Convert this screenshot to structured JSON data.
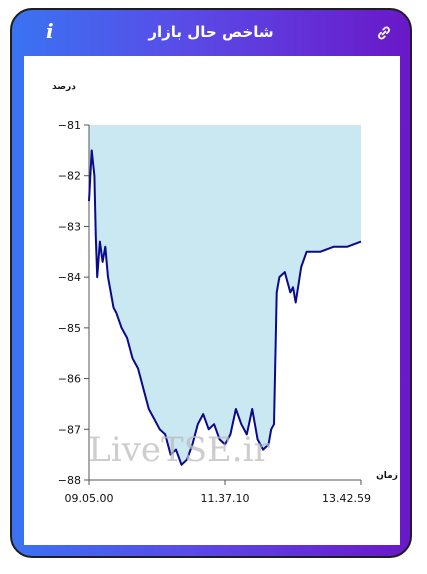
{
  "header": {
    "title": "شاخص حال بازار",
    "info_icon": "info-icon",
    "link_icon": "link-icon"
  },
  "colors": {
    "gradient_start": "#3a73f2",
    "gradient_end": "#6a18c8",
    "line": "#0a0a8c",
    "fill": "#c9e8f2"
  },
  "watermark": "LiveTSE.ir",
  "chart_data": {
    "type": "area",
    "ylabel": "درصد",
    "xlabel": "زمان",
    "ylim": [
      -88,
      -81
    ],
    "yticks": [
      -81,
      -82,
      -83,
      -84,
      -85,
      -86,
      -87,
      -88
    ],
    "ytick_labels": [
      "−81",
      "−82",
      "−83",
      "−84",
      "−85",
      "−86",
      "−87",
      "−88"
    ],
    "xtick_labels": [
      "09.05.00",
      "11.37.10",
      "13.42.59"
    ],
    "baseline": -81,
    "grid": false,
    "x_fraction": [
      0,
      0.01,
      0.02,
      0.025,
      0.03,
      0.04,
      0.05,
      0.06,
      0.07,
      0.08,
      0.09,
      0.1,
      0.12,
      0.14,
      0.16,
      0.18,
      0.2,
      0.22,
      0.24,
      0.26,
      0.28,
      0.3,
      0.32,
      0.34,
      0.36,
      0.38,
      0.4,
      0.42,
      0.44,
      0.46,
      0.48,
      0.5,
      0.52,
      0.54,
      0.56,
      0.58,
      0.6,
      0.62,
      0.64,
      0.66,
      0.67,
      0.68,
      0.69,
      0.7,
      0.72,
      0.74,
      0.75,
      0.76,
      0.78,
      0.8,
      0.85,
      0.9,
      0.95,
      1.0
    ],
    "values": [
      -82.5,
      -81.5,
      -82.0,
      -83.2,
      -84.0,
      -83.3,
      -83.7,
      -83.4,
      -84.0,
      -84.3,
      -84.6,
      -84.7,
      -85.0,
      -85.2,
      -85.6,
      -85.8,
      -86.2,
      -86.6,
      -86.8,
      -87.0,
      -87.1,
      -87.5,
      -87.4,
      -87.7,
      -87.6,
      -87.3,
      -86.9,
      -86.7,
      -87.0,
      -86.9,
      -87.2,
      -87.3,
      -87.1,
      -86.6,
      -86.9,
      -87.1,
      -86.6,
      -87.2,
      -87.4,
      -87.3,
      -87.0,
      -86.9,
      -84.3,
      -84.0,
      -83.9,
      -84.3,
      -84.2,
      -84.5,
      -83.8,
      -83.5,
      -83.5,
      -83.4,
      -83.4,
      -83.3
    ]
  }
}
